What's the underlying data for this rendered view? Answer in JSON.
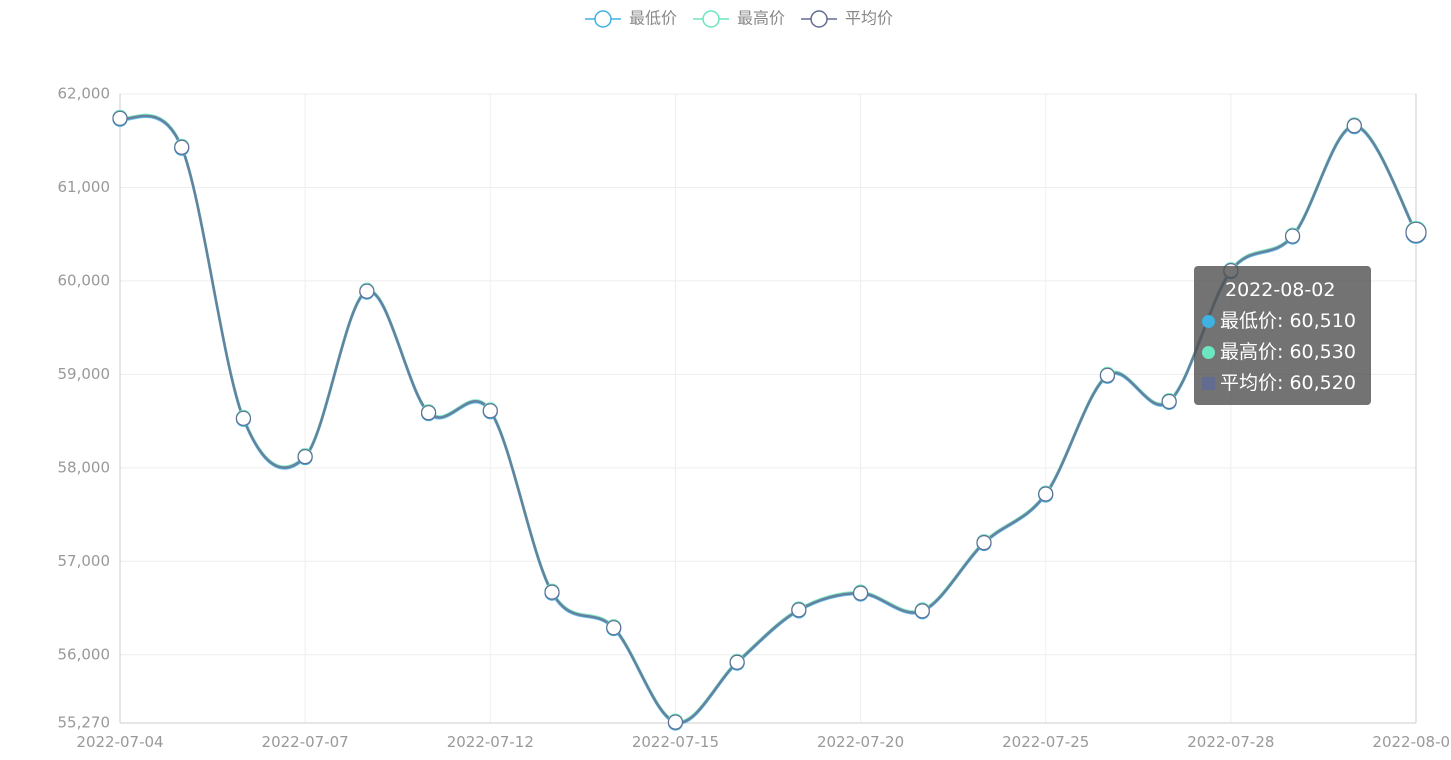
{
  "chart_data": {
    "type": "line",
    "categories": [
      "2022-07-04",
      null,
      null,
      "2022-07-07",
      null,
      null,
      "2022-07-12",
      null,
      null,
      "2022-07-15",
      null,
      null,
      "2022-07-20",
      null,
      null,
      "2022-07-25",
      null,
      null,
      "2022-07-28",
      null,
      null,
      "2022-08-02"
    ],
    "series": [
      {
        "name": "最低价",
        "color": "#3fb1e3",
        "values": [
          61730,
          61420,
          58520,
          58110,
          59880,
          58580,
          58600,
          56660,
          56280,
          55270,
          55910,
          56470,
          56650,
          56460,
          57190,
          57710,
          58980,
          58700,
          60100,
          60470,
          61650,
          60510
        ],
        "value_labels": [
          null,
          null,
          null,
          null,
          null,
          null,
          null,
          null,
          null,
          null,
          null,
          null,
          null,
          null,
          null,
          null,
          null,
          null,
          null,
          null,
          null,
          "60,510"
        ]
      },
      {
        "name": "最高价",
        "color": "#6be6c1",
        "values": [
          61750,
          61440,
          58540,
          58130,
          59900,
          58600,
          58620,
          56680,
          56300,
          55290,
          55930,
          56490,
          56670,
          56480,
          57210,
          57730,
          59000,
          58720,
          60120,
          60490,
          61670,
          60530
        ],
        "value_labels": [
          null,
          null,
          null,
          null,
          null,
          null,
          null,
          null,
          null,
          null,
          null,
          null,
          null,
          null,
          null,
          null,
          null,
          null,
          null,
          null,
          null,
          "60,530"
        ]
      },
      {
        "name": "平均价",
        "color": "#626c91",
        "values": [
          61740,
          61430,
          58530,
          58120,
          59890,
          58590,
          58610,
          56670,
          56290,
          55280,
          55920,
          56480,
          56660,
          56470,
          57200,
          57720,
          58990,
          58710,
          60110,
          60480,
          61660,
          60520
        ],
        "value_labels": [
          null,
          null,
          null,
          null,
          null,
          null,
          null,
          null,
          null,
          null,
          null,
          null,
          null,
          null,
          null,
          null,
          null,
          null,
          null,
          null,
          null,
          "60,520"
        ]
      }
    ],
    "ylim": [
      55270,
      62000
    ],
    "yticks": [
      {
        "value": 55270,
        "label": "55,270"
      },
      {
        "value": 56000,
        "label": "56,000"
      },
      {
        "value": 57000,
        "label": "57,000"
      },
      {
        "value": 58000,
        "label": "58,000"
      },
      {
        "value": 59000,
        "label": "59,000"
      },
      {
        "value": 60000,
        "label": "60,000"
      },
      {
        "value": 61000,
        "label": "61,000"
      },
      {
        "value": 62000,
        "label": "62,000"
      }
    ],
    "grid": true,
    "smooth": true,
    "legend": "top"
  }
}
